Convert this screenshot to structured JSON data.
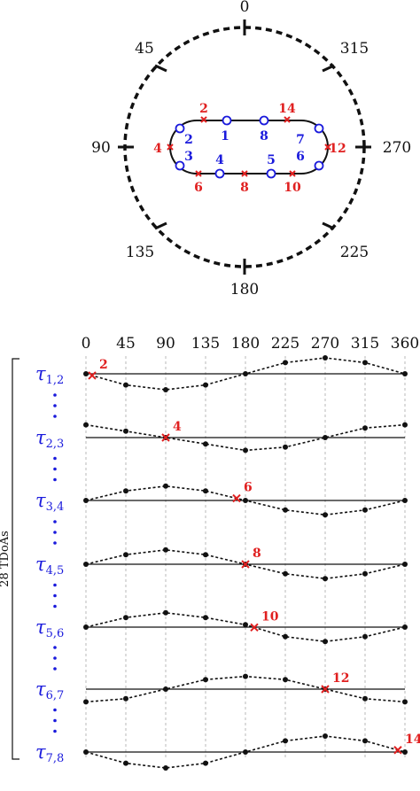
{
  "polar": {
    "angles": [
      {
        "text": "0"
      },
      {
        "text": "45"
      },
      {
        "text": "90"
      },
      {
        "text": "135"
      },
      {
        "text": "180"
      },
      {
        "text": "225"
      },
      {
        "text": "270"
      },
      {
        "text": "315"
      }
    ],
    "mics_blue": [
      "1",
      "2",
      "3",
      "4",
      "5",
      "6",
      "7",
      "8"
    ],
    "points_red": [
      "2",
      "4",
      "6",
      "8",
      "10",
      "12",
      "14"
    ]
  },
  "chart_data": {
    "type": "line",
    "x_ticks": [
      "0",
      "45",
      "90",
      "135",
      "180",
      "225",
      "270",
      "315",
      "360"
    ],
    "x": [
      0,
      45,
      90,
      135,
      180,
      225,
      270,
      315,
      360
    ],
    "bracket_label": "28 TDoAs",
    "rows": [
      {
        "label": "τ",
        "sub": "1,2",
        "values": [
          0,
          -0.7,
          -1.0,
          -0.7,
          0,
          0.7,
          1.0,
          0.7,
          0
        ],
        "cross_x": 7,
        "cross_label": "2"
      },
      {
        "label": "τ",
        "sub": "2,3",
        "values": [
          0.8,
          0.4,
          0,
          -0.4,
          -0.8,
          -0.6,
          0,
          0.6,
          0.8
        ],
        "cross_x": 90,
        "cross_label": "4"
      },
      {
        "label": "τ",
        "sub": "3,4",
        "values": [
          0,
          0.6,
          0.9,
          0.6,
          0,
          -0.6,
          -0.9,
          -0.6,
          0
        ],
        "cross_x": 170,
        "cross_label": "6"
      },
      {
        "label": "τ",
        "sub": "4,5",
        "values": [
          0,
          0.6,
          0.9,
          0.6,
          0,
          -0.6,
          -0.9,
          -0.6,
          0
        ],
        "cross_x": 180,
        "cross_label": "8"
      },
      {
        "label": "τ",
        "sub": "5,6",
        "values": [
          0,
          0.6,
          0.9,
          0.6,
          0.15,
          -0.6,
          -0.9,
          -0.6,
          0
        ],
        "cross_x": 190,
        "cross_label": "10"
      },
      {
        "label": "τ",
        "sub": "6,7",
        "values": [
          -0.8,
          -0.6,
          0,
          0.6,
          0.8,
          0.6,
          0,
          -0.6,
          -0.8
        ],
        "cross_x": 270,
        "cross_label": "12"
      },
      {
        "label": "τ",
        "sub": "7,8",
        "values": [
          0,
          -0.7,
          -1.0,
          -0.7,
          0,
          0.7,
          1.0,
          0.7,
          0
        ],
        "cross_x": 352,
        "cross_label": "14"
      }
    ],
    "colors": {
      "label": "#1a1adc",
      "cross": "#e02020",
      "line": "#111111"
    }
  }
}
